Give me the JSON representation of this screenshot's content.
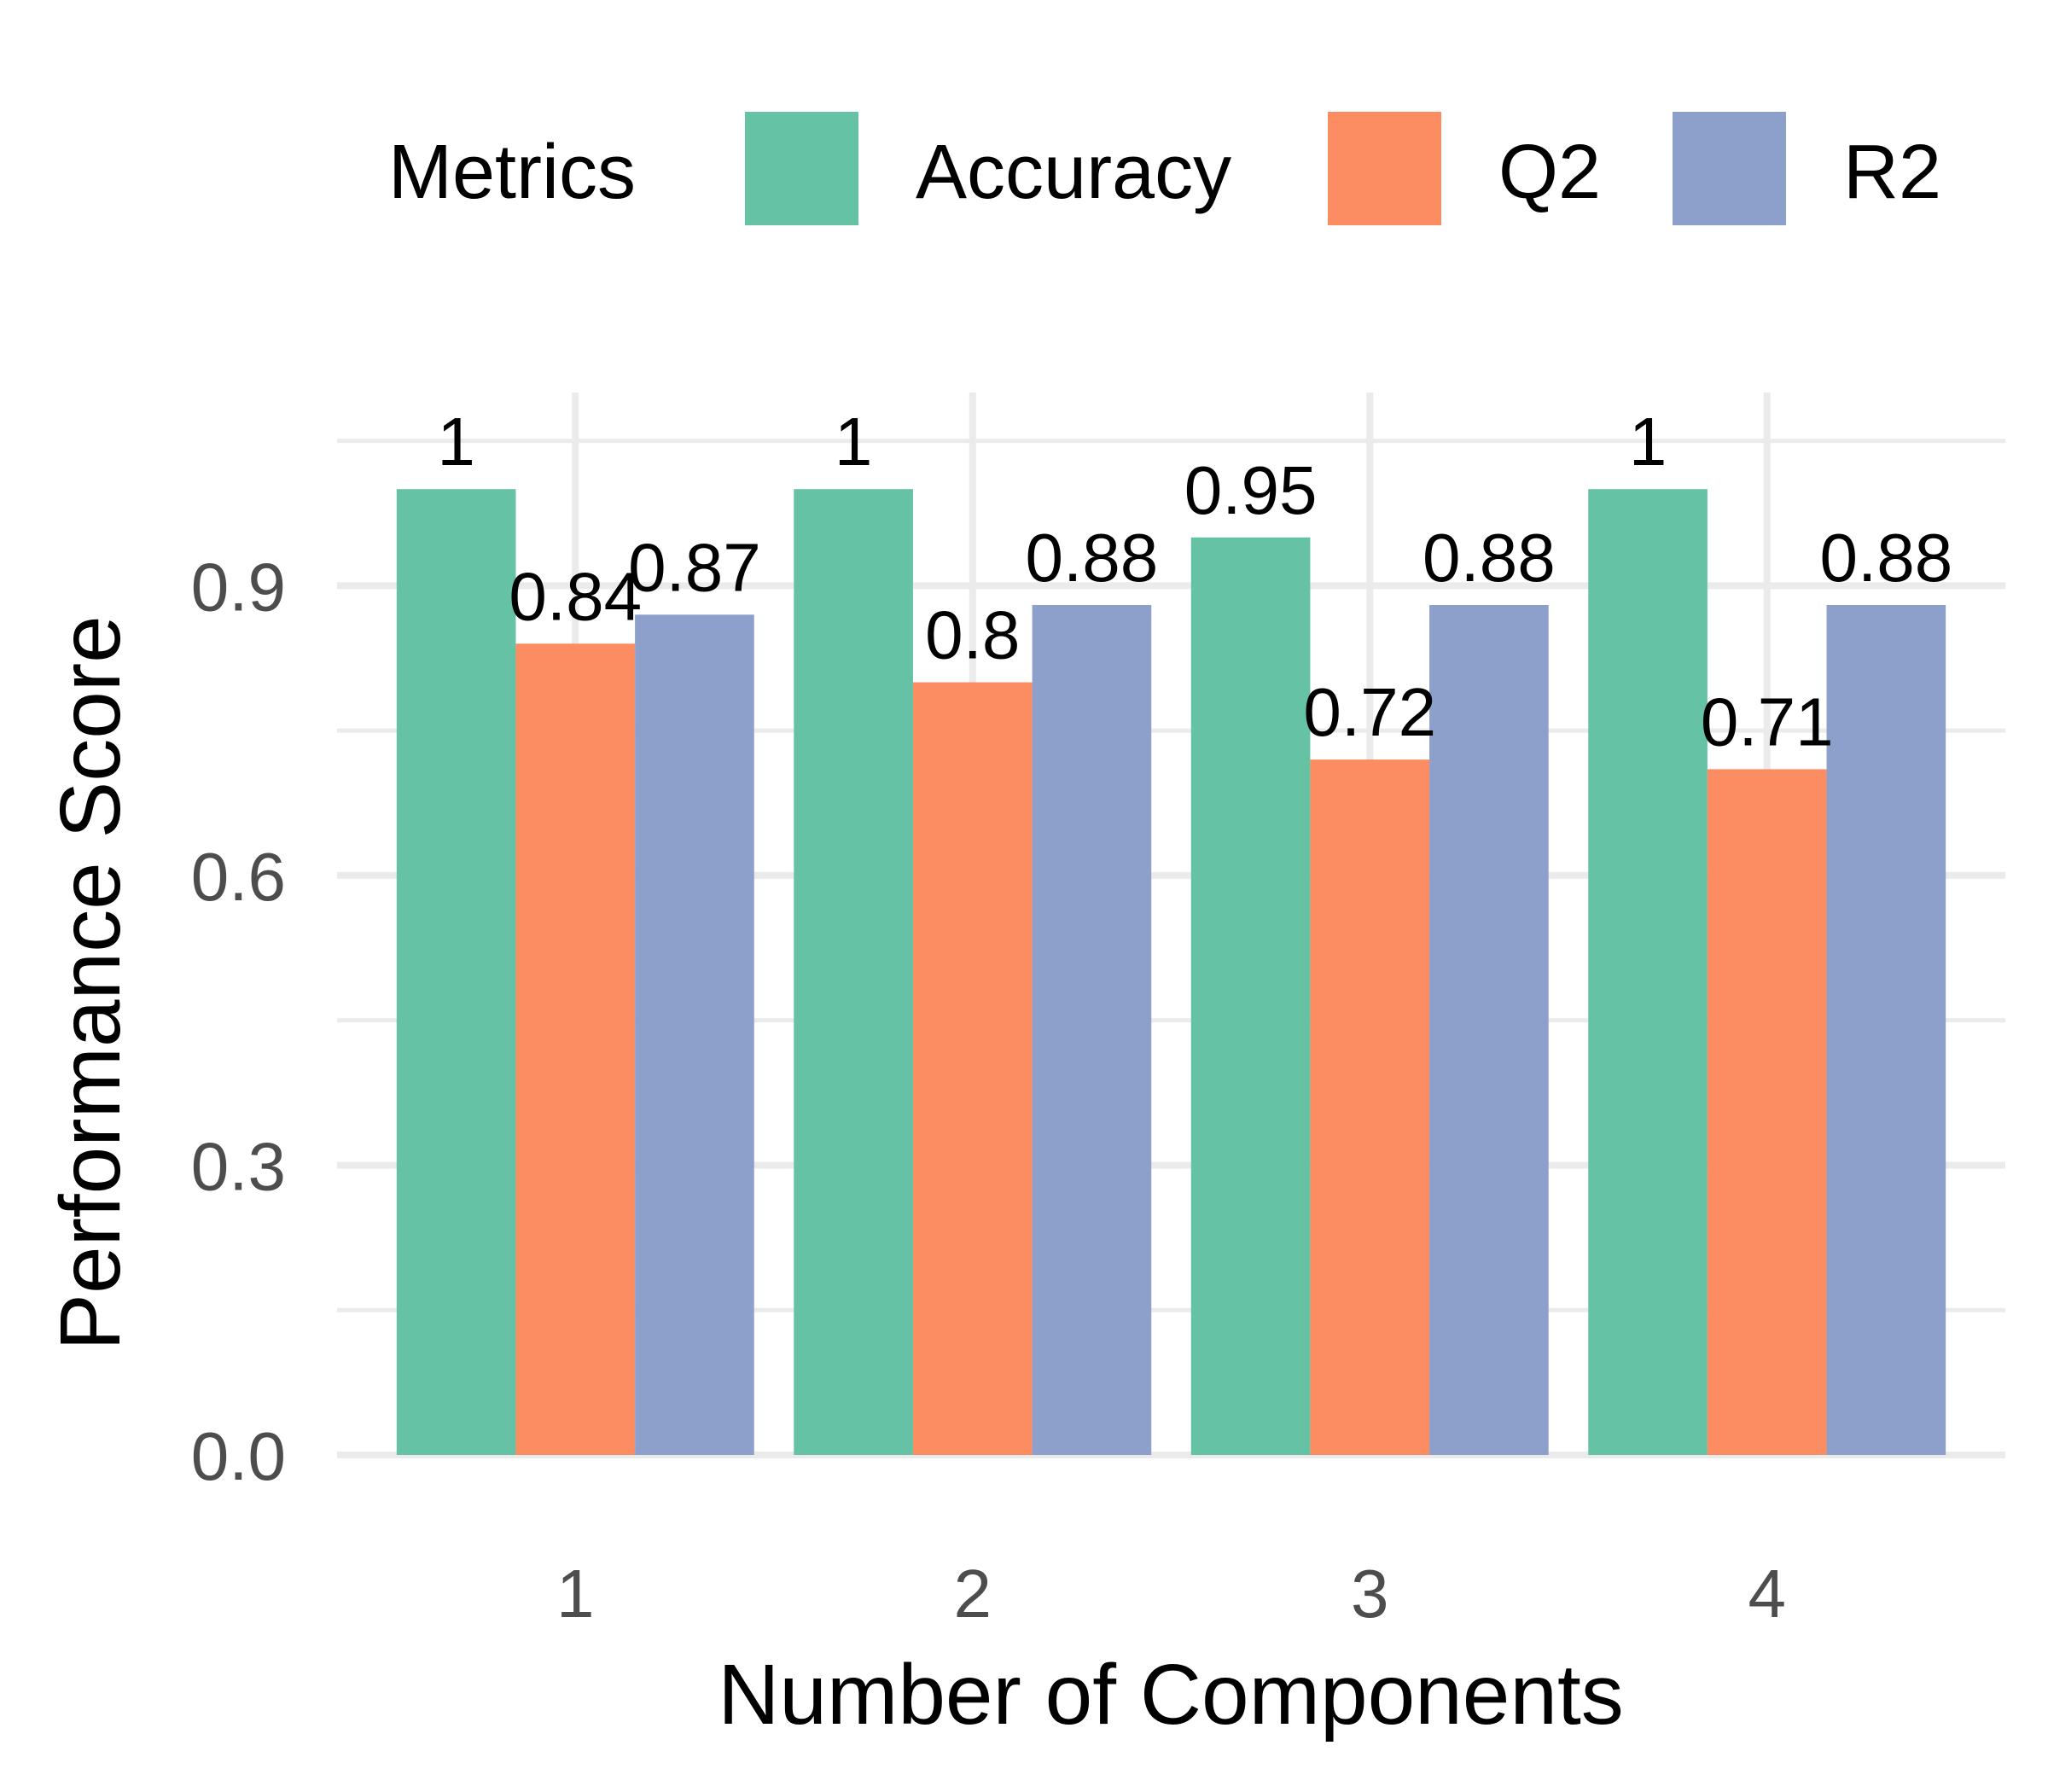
{
  "chart_data": {
    "type": "bar",
    "title": "",
    "xlabel": "Number of Components",
    "ylabel": "Performance Score",
    "categories": [
      "1",
      "2",
      "3",
      "4"
    ],
    "series": [
      {
        "name": "Accuracy",
        "color": "#66c2a5",
        "values": [
          1.0,
          1.0,
          0.95,
          1.0
        ],
        "labels": [
          "1",
          "1",
          "0.95",
          "1"
        ]
      },
      {
        "name": "Q2",
        "color": "#fc8d62",
        "values": [
          0.84,
          0.8,
          0.72,
          0.71
        ],
        "labels": [
          "0.84",
          "0.8",
          "0.72",
          "0.71"
        ]
      },
      {
        "name": "R2",
        "color": "#8da0cb",
        "values": [
          0.87,
          0.88,
          0.88,
          0.88
        ],
        "labels": [
          "0.87",
          "0.88",
          "0.88",
          "0.88"
        ]
      }
    ],
    "ylim": [
      0,
      1.1
    ],
    "yticks": [
      0,
      0.3,
      0.6,
      0.9
    ],
    "ytick_labels": [
      "0.0",
      "0.3",
      "0.6",
      "0.9"
    ],
    "grid": true,
    "legend": {
      "title": "Metrics",
      "position": "top"
    }
  }
}
